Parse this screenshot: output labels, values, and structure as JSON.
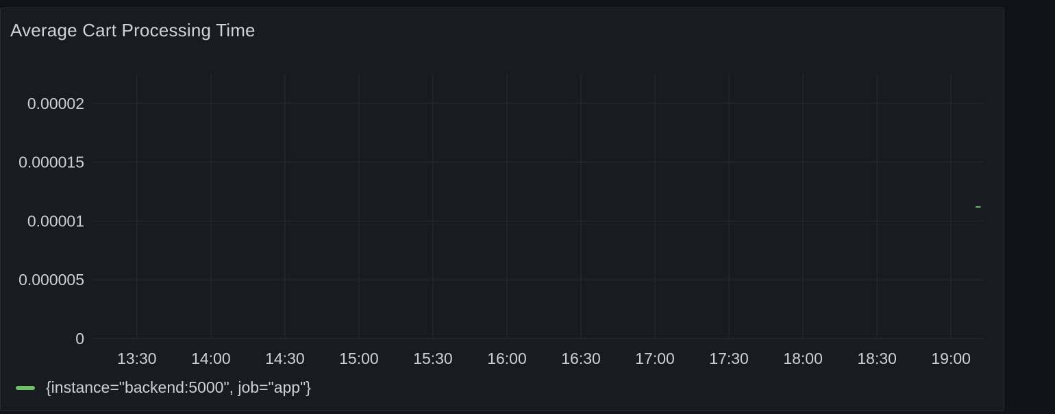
{
  "panel": {
    "title": "Average Cart Processing Time"
  },
  "chart_data": {
    "type": "line",
    "title": "Average Cart Processing Time",
    "xlabel": "",
    "ylabel": "",
    "x_ticks": [
      "13:30",
      "14:00",
      "14:30",
      "15:00",
      "15:30",
      "16:00",
      "16:30",
      "17:00",
      "17:30",
      "18:00",
      "18:30",
      "19:00"
    ],
    "y_ticks": [
      "0",
      "0.000005",
      "0.00001",
      "0.000015",
      "0.00002"
    ],
    "y_tick_values": [
      0,
      5e-06,
      1e-05,
      1.5e-05,
      2e-05
    ],
    "xlim": [
      "13:12",
      "19:13"
    ],
    "ylim": [
      0,
      2.25e-05
    ],
    "grid": true,
    "legend_position": "bottom-left",
    "series": [
      {
        "name": "{instance=\"backend:5000\", job=\"app\"}",
        "color": "#73bf69",
        "points": [
          {
            "x": "19:10",
            "y": 1.12e-05
          },
          {
            "x": "19:12",
            "y": 1.12e-05
          }
        ]
      }
    ]
  },
  "colors": {
    "background": "#111217",
    "panel": "#181b1f",
    "grid": "#2a2c32",
    "text": "#cfd0d4",
    "series": "#73bf69"
  }
}
